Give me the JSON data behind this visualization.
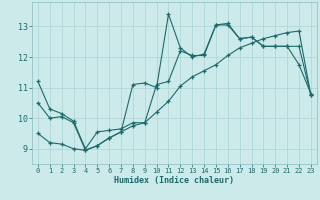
{
  "xlabel": "Humidex (Indice chaleur)",
  "bg_color": "#cceaea",
  "grid_color": "#aad4d4",
  "line_color": "#1a6b6b",
  "xlim": [
    -0.5,
    23.5
  ],
  "ylim": [
    8.5,
    13.8
  ],
  "xticks": [
    0,
    1,
    2,
    3,
    4,
    5,
    6,
    7,
    8,
    9,
    10,
    11,
    12,
    13,
    14,
    15,
    16,
    17,
    18,
    19,
    20,
    21,
    22,
    23
  ],
  "yticks": [
    9,
    10,
    11,
    12,
    13
  ],
  "line1_x": [
    0,
    1,
    2,
    3,
    4,
    5,
    6,
    7,
    8,
    9,
    10,
    11,
    12,
    13,
    14,
    15,
    16,
    17,
    18,
    19,
    20,
    21,
    22,
    23
  ],
  "line1_y": [
    11.2,
    10.3,
    10.15,
    9.9,
    9.0,
    9.55,
    9.6,
    9.65,
    9.85,
    9.85,
    11.1,
    11.2,
    12.2,
    12.05,
    12.05,
    13.05,
    13.05,
    12.6,
    12.65,
    12.35,
    12.35,
    12.35,
    11.75,
    10.8
  ],
  "line2_x": [
    0,
    1,
    2,
    3,
    4,
    5,
    6,
    7,
    8,
    9,
    10,
    11,
    12,
    13,
    14,
    15,
    16,
    17,
    18,
    19,
    20,
    21,
    22,
    23
  ],
  "line2_y": [
    10.5,
    10.0,
    10.05,
    9.85,
    8.95,
    9.1,
    9.35,
    9.55,
    11.1,
    11.15,
    11.0,
    13.4,
    12.3,
    12.0,
    12.1,
    13.05,
    13.1,
    12.6,
    12.65,
    12.35,
    12.35,
    12.35,
    12.35,
    10.75
  ],
  "line3_x": [
    0,
    1,
    2,
    3,
    4,
    5,
    6,
    7,
    8,
    9,
    10,
    11,
    12,
    13,
    14,
    15,
    16,
    17,
    18,
    19,
    20,
    21,
    22,
    23
  ],
  "line3_y": [
    9.5,
    9.2,
    9.15,
    9.0,
    8.95,
    9.1,
    9.35,
    9.55,
    9.75,
    9.85,
    10.2,
    10.55,
    11.05,
    11.35,
    11.55,
    11.75,
    12.05,
    12.3,
    12.45,
    12.6,
    12.7,
    12.8,
    12.85,
    10.75
  ]
}
